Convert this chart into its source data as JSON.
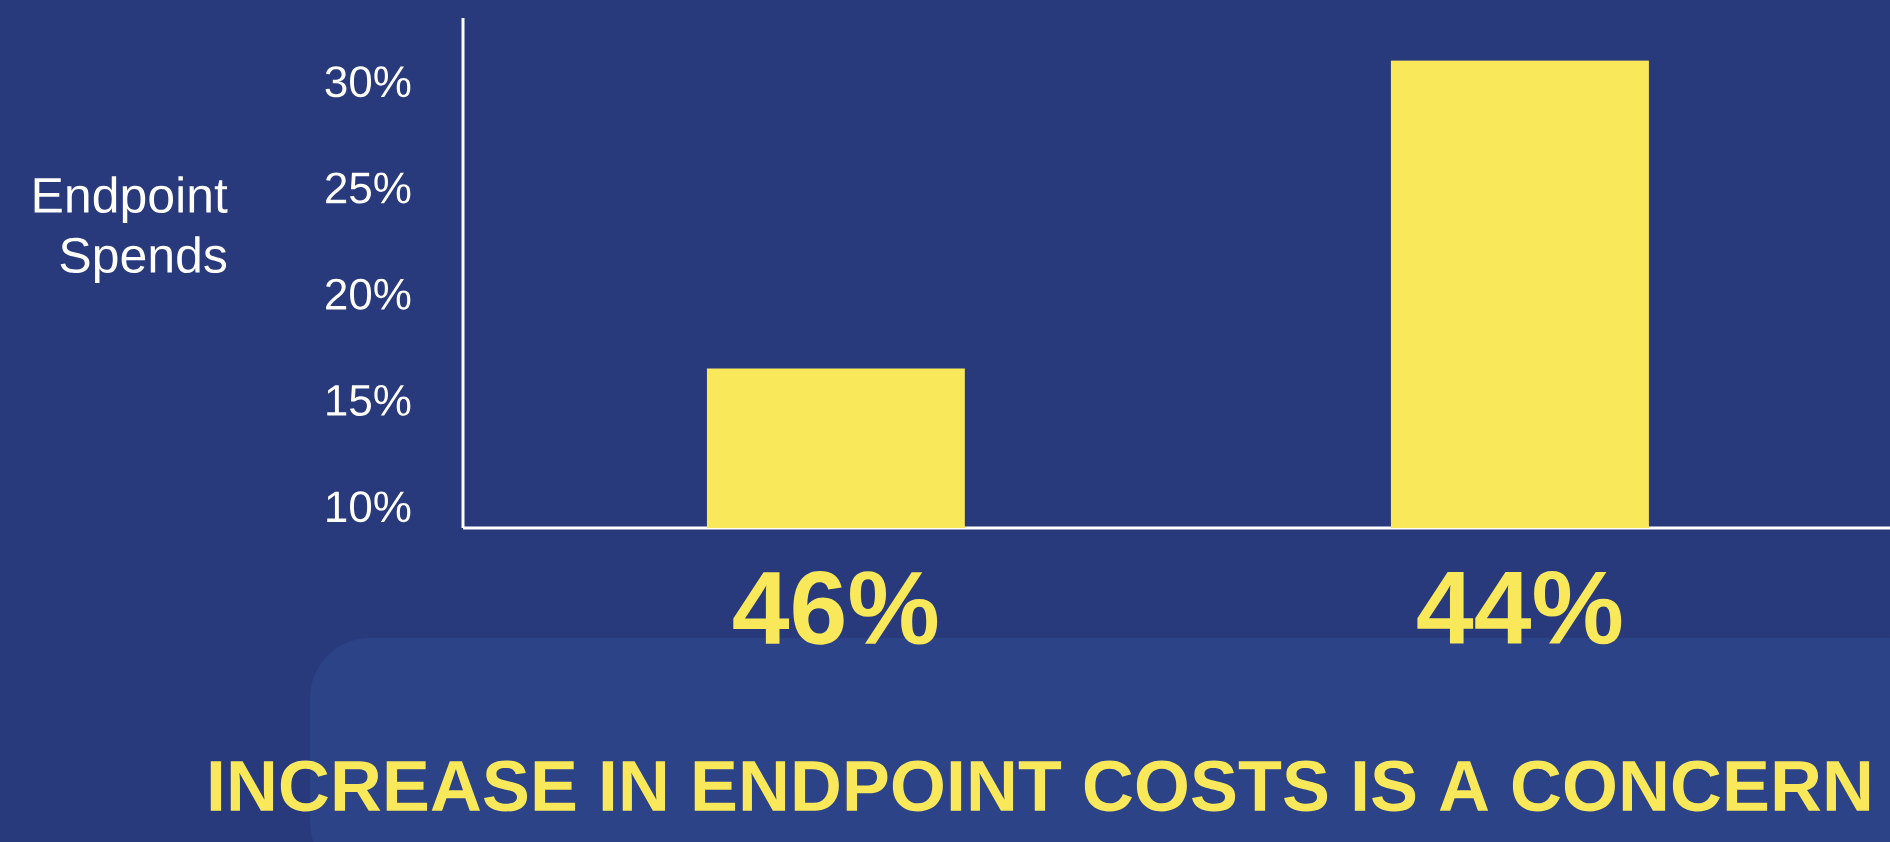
{
  "chart_data": {
    "type": "bar",
    "ylabel": "Endpoint Spends",
    "categories": [
      "46%",
      "44%"
    ],
    "values": [
      16.5,
      31
    ],
    "color": "#f9e85a",
    "ylim": [
      9,
      33
    ],
    "yticks": [
      {
        "value": 10,
        "label": "10%"
      },
      {
        "value": 15,
        "label": "15%"
      },
      {
        "value": 20,
        "label": "20%"
      },
      {
        "value": 25,
        "label": "25%"
      },
      {
        "value": 30,
        "label": "30%"
      }
    ],
    "annotations": [
      "INCREASE IN ENDPOINT COSTS IS A CONCERN"
    ]
  }
}
